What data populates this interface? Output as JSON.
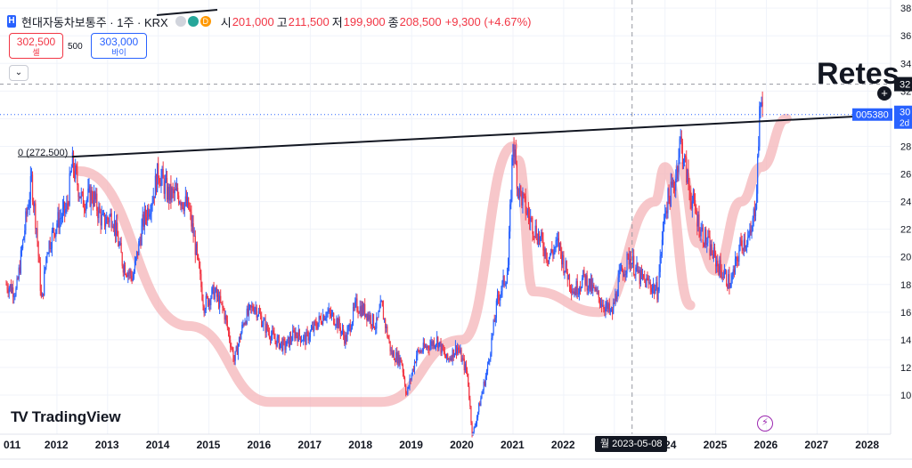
{
  "header": {
    "symbol_name": "현대자동차보통주 · 1주 · KRX",
    "open_label": "시",
    "open": "201,000",
    "high_label": "고",
    "high": "211,500",
    "low_label": "저",
    "low": "199,900",
    "close_label": "종",
    "close": "208,500",
    "change": "+9,300 (+4.67%)",
    "status_dot_colors": [
      "#b2b5be",
      "#26a69a",
      "#ff9800"
    ],
    "letter_badge": "D"
  },
  "trade": {
    "sell_price": "302,500",
    "sell_label": "셀",
    "spread": "500",
    "buy_price": "303,000",
    "buy_label": "바이"
  },
  "collapse_icon": "chevron-down-icon",
  "logo_text": "TradingView",
  "annotation_text": "Retes",
  "crosshair_date": "월 2023-05-08",
  "colors": {
    "up": "#2962ff",
    "down": "#f23645",
    "highlight": "#f4b4b8",
    "trendline": "#131722",
    "price_tag": "#2962ff"
  },
  "chart_data": {
    "type": "candlestick",
    "x_ticks": [
      "2012",
      "2013",
      "2014",
      "2015",
      "2016",
      "2017",
      "2018",
      "2019",
      "2020",
      "2021",
      "2022",
      "2023",
      "2024",
      "2025",
      "2026",
      "2027",
      "2028"
    ],
    "x_tick_partial_left": "011",
    "y_ticks": [
      100000,
      120000,
      140000,
      160000,
      180000,
      200000,
      220000,
      240000,
      260000,
      280000,
      300000,
      320000,
      340000,
      360000,
      380000
    ],
    "y_ticks_visible": [
      "10",
      "12",
      "14",
      "16",
      "18",
      "20",
      "22",
      "24",
      "26",
      "28",
      "30",
      "32",
      "34",
      "36",
      "38"
    ],
    "ylim": [
      90000,
      391000
    ],
    "xlim": [
      2011.0,
      2028.5
    ],
    "price_path": [
      [
        2011.0,
        180000
      ],
      [
        2011.2,
        175000
      ],
      [
        2011.4,
        230000
      ],
      [
        2011.5,
        255000
      ],
      [
        2011.6,
        220000
      ],
      [
        2011.7,
        165000
      ],
      [
        2011.8,
        205000
      ],
      [
        2012.0,
        225000
      ],
      [
        2012.2,
        235000
      ],
      [
        2012.3,
        268000
      ],
      [
        2012.5,
        240000
      ],
      [
        2012.7,
        245000
      ],
      [
        2012.9,
        225000
      ],
      [
        2013.1,
        230000
      ],
      [
        2013.3,
        195000
      ],
      [
        2013.5,
        185000
      ],
      [
        2013.7,
        225000
      ],
      [
        2013.9,
        245000
      ],
      [
        2014.0,
        262000
      ],
      [
        2014.2,
        245000
      ],
      [
        2014.4,
        245000
      ],
      [
        2014.6,
        235000
      ],
      [
        2014.7,
        215000
      ],
      [
        2014.9,
        165000
      ],
      [
        2015.1,
        175000
      ],
      [
        2015.3,
        160000
      ],
      [
        2015.5,
        125000
      ],
      [
        2015.7,
        155000
      ],
      [
        2015.9,
        165000
      ],
      [
        2016.1,
        150000
      ],
      [
        2016.3,
        140000
      ],
      [
        2016.5,
        135000
      ],
      [
        2016.7,
        145000
      ],
      [
        2016.9,
        140000
      ],
      [
        2017.1,
        150000
      ],
      [
        2017.3,
        160000
      ],
      [
        2017.5,
        155000
      ],
      [
        2017.7,
        140000
      ],
      [
        2017.9,
        165000
      ],
      [
        2018.1,
        160000
      ],
      [
        2018.3,
        150000
      ],
      [
        2018.4,
        165000
      ],
      [
        2018.6,
        130000
      ],
      [
        2018.8,
        125000
      ],
      [
        2018.9,
        100000
      ],
      [
        2019.1,
        130000
      ],
      [
        2019.3,
        135000
      ],
      [
        2019.5,
        140000
      ],
      [
        2019.7,
        125000
      ],
      [
        2019.9,
        135000
      ],
      [
        2020.0,
        125000
      ],
      [
        2020.1,
        115000
      ],
      [
        2020.2,
        70000
      ],
      [
        2020.35,
        95000
      ],
      [
        2020.5,
        120000
      ],
      [
        2020.7,
        170000
      ],
      [
        2020.9,
        190000
      ],
      [
        2021.0,
        285000
      ],
      [
        2021.1,
        250000
      ],
      [
        2021.3,
        230000
      ],
      [
        2021.5,
        215000
      ],
      [
        2021.7,
        200000
      ],
      [
        2021.9,
        210000
      ],
      [
        2022.0,
        195000
      ],
      [
        2022.2,
        175000
      ],
      [
        2022.4,
        185000
      ],
      [
        2022.6,
        175000
      ],
      [
        2022.8,
        165000
      ],
      [
        2022.95,
        158000
      ],
      [
        2023.1,
        185000
      ],
      [
        2023.3,
        200000
      ],
      [
        2023.5,
        185000
      ],
      [
        2023.7,
        180000
      ],
      [
        2023.85,
        175000
      ],
      [
        2024.0,
        235000
      ],
      [
        2024.2,
        255000
      ],
      [
        2024.3,
        285000
      ],
      [
        2024.5,
        245000
      ],
      [
        2024.7,
        220000
      ],
      [
        2024.9,
        205000
      ],
      [
        2025.1,
        190000
      ],
      [
        2025.3,
        180000
      ],
      [
        2025.5,
        210000
      ],
      [
        2025.7,
        215000
      ],
      [
        2025.8,
        245000
      ],
      [
        2025.85,
        290000
      ],
      [
        2025.9,
        320000
      ],
      [
        2025.93,
        305000
      ]
    ],
    "trendline": {
      "start": [
        2012.3,
        272500
      ],
      "end": [
        2028.5,
        303000
      ],
      "label": "0 (272,500)"
    },
    "horizontal_line": 325000,
    "current_price_tag": {
      "value": 303000,
      "code": "005380",
      "price_partial": "30",
      "countdown_partial": "2d"
    },
    "crosshair_x": 2023.35,
    "axis_price_partial": "32",
    "highlight_curves": [
      [
        [
          2012.45,
          262000
        ],
        [
          2014.6,
          150000
        ],
        [
          2016.2,
          95000
        ],
        [
          2018.4,
          95000
        ],
        [
          2020.0,
          140000
        ],
        [
          2021.0,
          280000
        ]
      ],
      [
        [
          2021.1,
          270000
        ],
        [
          2021.4,
          175000
        ],
        [
          2022.7,
          160000
        ],
        [
          2023.8,
          240000
        ],
        [
          2024.0,
          265000
        ],
        [
          2024.5,
          165000
        ]
      ],
      [
        [
          2024.3,
          265000
        ],
        [
          2024.65,
          210000
        ],
        [
          2025.0,
          190000
        ],
        [
          2025.5,
          240000
        ],
        [
          2025.9,
          265000
        ],
        [
          2026.4,
          300000
        ]
      ]
    ]
  }
}
